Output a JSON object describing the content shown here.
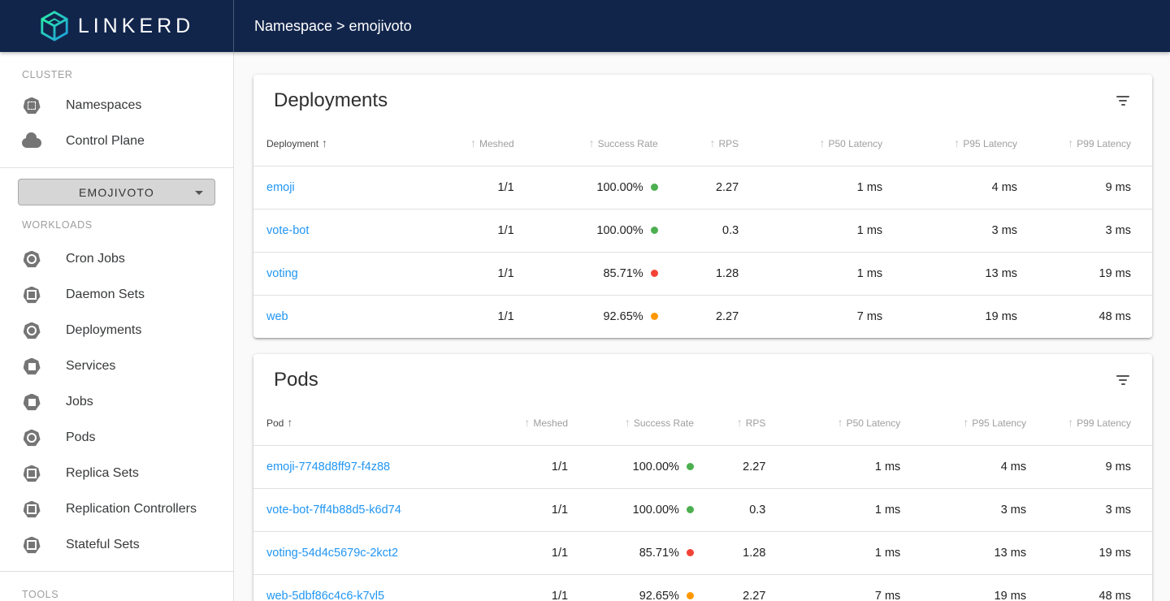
{
  "topbar": {
    "logo_text": "LINKERD",
    "breadcrumb": "Namespace > emojivoto"
  },
  "sidebar": {
    "cluster_label": "CLUSTER",
    "cluster_items": [
      {
        "label": "Namespaces",
        "icon": "namespaces-icon"
      },
      {
        "label": "Control Plane",
        "icon": "control-plane-cloud-icon"
      }
    ],
    "namespace_selector": {
      "value": "EMOJIVOTO"
    },
    "workloads_label": "WORKLOADS",
    "workload_items": [
      {
        "label": "Cron Jobs",
        "icon": "cron-jobs-icon"
      },
      {
        "label": "Daemon Sets",
        "icon": "daemon-sets-icon"
      },
      {
        "label": "Deployments",
        "icon": "deployments-icon"
      },
      {
        "label": "Services",
        "icon": "services-icon"
      },
      {
        "label": "Jobs",
        "icon": "jobs-icon"
      },
      {
        "label": "Pods",
        "icon": "pods-icon"
      },
      {
        "label": "Replica Sets",
        "icon": "replica-sets-icon"
      },
      {
        "label": "Replication Controllers",
        "icon": "replication-controllers-icon"
      },
      {
        "label": "Stateful Sets",
        "icon": "stateful-sets-icon"
      }
    ],
    "tools_label": "TOOLS"
  },
  "deployments_card": {
    "title": "Deployments",
    "columns": [
      "Deployment",
      "Meshed",
      "Success Rate",
      "RPS",
      "P50 Latency",
      "P95 Latency",
      "P99 Latency"
    ],
    "sort": {
      "column": "Deployment",
      "direction": "asc"
    },
    "rows": [
      {
        "name": "emoji",
        "meshed": "1/1",
        "success_rate": "100.00%",
        "status": "good",
        "rps": "2.27",
        "p50": "1 ms",
        "p95": "4 ms",
        "p99": "9 ms"
      },
      {
        "name": "vote-bot",
        "meshed": "1/1",
        "success_rate": "100.00%",
        "status": "good",
        "rps": "0.3",
        "p50": "1 ms",
        "p95": "3 ms",
        "p99": "3 ms"
      },
      {
        "name": "voting",
        "meshed": "1/1",
        "success_rate": "85.71%",
        "status": "bad",
        "rps": "1.28",
        "p50": "1 ms",
        "p95": "13 ms",
        "p99": "19 ms"
      },
      {
        "name": "web",
        "meshed": "1/1",
        "success_rate": "92.65%",
        "status": "warn",
        "rps": "2.27",
        "p50": "7 ms",
        "p95": "19 ms",
        "p99": "48 ms"
      }
    ]
  },
  "pods_card": {
    "title": "Pods",
    "columns": [
      "Pod",
      "Meshed",
      "Success Rate",
      "RPS",
      "P50 Latency",
      "P95 Latency",
      "P99 Latency"
    ],
    "sort": {
      "column": "Pod",
      "direction": "asc"
    },
    "rows": [
      {
        "name": "emoji-7748d8ff97-f4z88",
        "meshed": "1/1",
        "success_rate": "100.00%",
        "status": "good",
        "rps": "2.27",
        "p50": "1 ms",
        "p95": "4 ms",
        "p99": "9 ms"
      },
      {
        "name": "vote-bot-7ff4b88d5-k6d74",
        "meshed": "1/1",
        "success_rate": "100.00%",
        "status": "good",
        "rps": "0.3",
        "p50": "1 ms",
        "p95": "3 ms",
        "p99": "3 ms"
      },
      {
        "name": "voting-54d4c5679c-2kct2",
        "meshed": "1/1",
        "success_rate": "85.71%",
        "status": "bad",
        "rps": "1.28",
        "p50": "1 ms",
        "p95": "13 ms",
        "p99": "19 ms"
      },
      {
        "name": "web-5dbf86c4c6-k7vl5",
        "meshed": "1/1",
        "success_rate": "92.65%",
        "status": "warn",
        "rps": "2.27",
        "p50": "7 ms",
        "p95": "19 ms",
        "p99": "48 ms"
      }
    ]
  },
  "colors": {
    "topbar_bg": "#11254b",
    "link": "#2196f3",
    "status_good": "#4caf50",
    "status_warn": "#ff9800",
    "status_bad": "#f44336",
    "logo_gradient_start": "#2beda7",
    "logo_gradient_end": "#1e9de0"
  }
}
